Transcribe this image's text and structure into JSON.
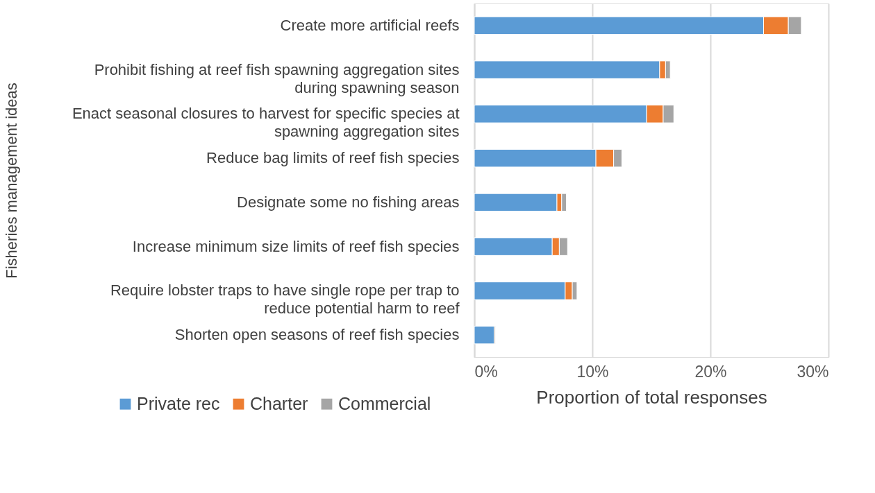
{
  "chart_data": {
    "type": "bar",
    "orientation": "horizontal",
    "stacked": true,
    "ylabel": "Fisheries management ideas",
    "xlabel": "Proportion of total responses",
    "categories": [
      "Create more artificial reefs",
      "Prohibit fishing at reef fish spawning aggregation sites during spawning season",
      "Enact seasonal closures to harvest for specific species at spawning aggregation sites",
      "Reduce bag limits of reef fish species",
      "Designate some no fishing areas",
      "Increase minimum size limits of reef fish species",
      "Require lobster traps to have single rope per trap to reduce potential harm to reef",
      "Shorten open seasons of reef fish species"
    ],
    "series": [
      {
        "name": "Private rec",
        "color": "#5b9bd5",
        "values": [
          24.5,
          15.7,
          14.6,
          10.3,
          7.0,
          6.6,
          7.7,
          1.7
        ]
      },
      {
        "name": "Charter",
        "color": "#ed7d31",
        "values": [
          2.1,
          0.5,
          1.4,
          1.5,
          0.4,
          0.6,
          0.6,
          0
        ]
      },
      {
        "name": "Commercial",
        "color": "#a5a5a5",
        "values": [
          1.1,
          0.4,
          0.9,
          0.7,
          0.4,
          0.7,
          0.4,
          0.1
        ]
      }
    ],
    "xlim": [
      0,
      30
    ],
    "xticks": [
      {
        "value": 0,
        "label": "0%"
      },
      {
        "value": 10,
        "label": "10%"
      },
      {
        "value": 20,
        "label": "20%"
      },
      {
        "value": 30,
        "label": "30%"
      }
    ],
    "grid": "x",
    "legend": "bottom"
  }
}
